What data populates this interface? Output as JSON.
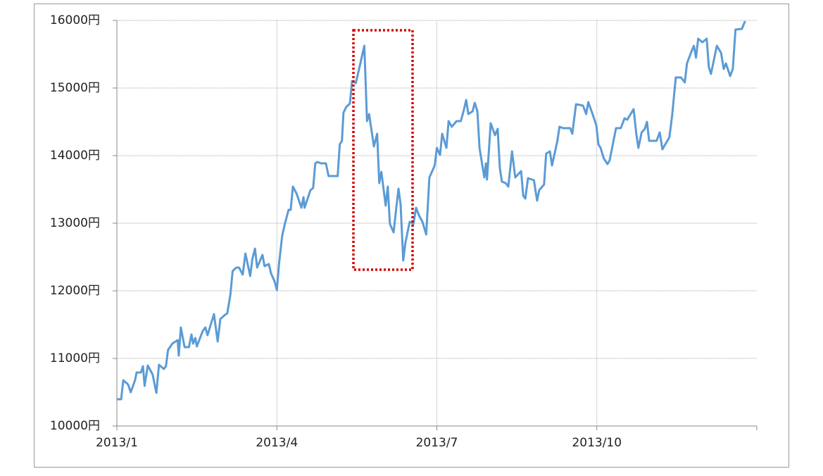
{
  "chart_data": {
    "type": "line",
    "x": [
      0,
      0.08,
      0.12,
      0.21,
      0.26,
      0.34,
      0.37,
      0.45,
      0.49,
      0.52,
      0.58,
      0.67,
      0.74,
      0.79,
      0.88,
      0.92,
      0.96,
      1.04,
      1.14,
      1.16,
      1.2,
      1.27,
      1.35,
      1.4,
      1.43,
      1.47,
      1.5,
      1.61,
      1.66,
      1.7,
      1.82,
      1.89,
      1.94,
      2.03,
      2.07,
      2.13,
      2.17,
      2.24,
      2.29,
      2.36,
      2.41,
      2.5,
      2.54,
      2.59,
      2.63,
      2.73,
      2.77,
      2.85,
      2.89,
      2.96,
      3.0,
      3.04,
      3.1,
      3.15,
      3.22,
      3.26,
      3.3,
      3.37,
      3.46,
      3.5,
      3.52,
      3.63,
      3.68,
      3.72,
      3.76,
      3.83,
      3.92,
      3.97,
      4.14,
      4.18,
      4.22,
      4.25,
      4.3,
      4.37,
      4.41,
      4.48,
      4.56,
      4.64,
      4.69,
      4.73,
      4.82,
      4.88,
      4.92,
      4.96,
      5.04,
      5.08,
      5.12,
      5.19,
      5.24,
      5.28,
      5.32,
      5.37,
      5.41,
      5.49,
      5.56,
      5.61,
      5.66,
      5.73,
      5.8,
      5.86,
      5.96,
      6.0,
      6.06,
      6.1,
      6.18,
      6.22,
      6.28,
      6.37,
      6.45,
      6.5,
      6.55,
      6.59,
      6.67,
      6.71,
      6.76,
      6.8,
      6.89,
      6.92,
      6.94,
      7.01,
      7.09,
      7.14,
      7.18,
      7.22,
      7.29,
      7.34,
      7.41,
      7.47,
      7.58,
      7.62,
      7.66,
      7.71,
      7.82,
      7.88,
      7.92,
      8.01,
      8.05,
      8.12,
      8.16,
      8.26,
      8.3,
      8.37,
      8.5,
      8.54,
      8.61,
      8.74,
      8.8,
      8.84,
      8.92,
      8.99,
      9.03,
      9.07,
      9.13,
      9.2,
      9.24,
      9.36,
      9.45,
      9.52,
      9.57,
      9.69,
      9.74,
      9.78,
      9.84,
      9.9,
      9.94,
      9.98,
      10.12,
      10.18,
      10.23,
      10.36,
      10.41,
      10.48,
      10.58,
      10.65,
      10.69,
      10.78,
      10.82,
      10.86,
      10.9,
      10.98,
      11.06,
      11.1,
      11.14,
      11.25,
      11.33,
      11.38,
      11.42,
      11.5,
      11.55,
      11.6,
      11.72,
      11.78
    ],
    "values": [
      10396,
      10396,
      10677,
      10615,
      10500,
      10677,
      10792,
      10792,
      10885,
      10594,
      10896,
      10760,
      10490,
      10906,
      10844,
      10885,
      11125,
      11219,
      11271,
      11042,
      11458,
      11167,
      11167,
      11354,
      11219,
      11302,
      11177,
      11406,
      11458,
      11344,
      11656,
      11250,
      11583,
      11646,
      11667,
      11948,
      12292,
      12344,
      12344,
      12240,
      12552,
      12219,
      12469,
      12625,
      12344,
      12531,
      12365,
      12396,
      12260,
      12135,
      12010,
      12396,
      12813,
      12990,
      13198,
      13198,
      13542,
      13438,
      13229,
      13385,
      13229,
      13490,
      13521,
      13885,
      13906,
      13885,
      13885,
      13698,
      13698,
      14167,
      14219,
      14635,
      14719,
      14771,
      15104,
      15073,
      15344,
      15625,
      14510,
      14615,
      14135,
      14323,
      13594,
      13760,
      13260,
      13542,
      12990,
      12865,
      13229,
      13510,
      13281,
      12448,
      12708,
      13021,
      12990,
      13229,
      13125,
      13021,
      12833,
      13677,
      13854,
      14115,
      14010,
      14323,
      14115,
      14510,
      14427,
      14510,
      14510,
      14656,
      14823,
      14615,
      14656,
      14781,
      14656,
      14115,
      13677,
      13885,
      13646,
      14479,
      14302,
      14396,
      13823,
      13615,
      13594,
      13542,
      14063,
      13677,
      13771,
      13406,
      13365,
      13667,
      13635,
      13333,
      13490,
      13573,
      14031,
      14063,
      13854,
      14219,
      14427,
      14406,
      14406,
      14323,
      14760,
      14740,
      14615,
      14792,
      14615,
      14448,
      14167,
      14115,
      13958,
      13875,
      13927,
      14406,
      14406,
      14552,
      14531,
      14688,
      14323,
      14115,
      14344,
      14396,
      14500,
      14219,
      14219,
      14344,
      14094,
      14271,
      14583,
      15156,
      15156,
      15083,
      15365,
      15552,
      15625,
      15448,
      15729,
      15677,
      15729,
      15313,
      15208,
      15625,
      15521,
      15281,
      15365,
      15177,
      15281,
      15865,
      15875,
      15990
    ],
    "color": "#5b9bd5",
    "xlim": [
      0,
      12
    ],
    "xticks": [
      {
        "value": 0,
        "label": "2013/1"
      },
      {
        "value": 3,
        "label": "2013/4"
      },
      {
        "value": 6,
        "label": "2013/7"
      },
      {
        "value": 9,
        "label": "2013/10"
      }
    ],
    "ylim": [
      10000,
      16000
    ],
    "yticks": [
      {
        "value": 10000,
        "label": "10000円"
      },
      {
        "value": 11000,
        "label": "11000円"
      },
      {
        "value": 12000,
        "label": "12000円"
      },
      {
        "value": 13000,
        "label": "13000円"
      },
      {
        "value": 14000,
        "label": "14000円"
      },
      {
        "value": 15000,
        "label": "15000円"
      },
      {
        "value": 16000,
        "label": "16000円"
      }
    ],
    "grid": true
  }
}
